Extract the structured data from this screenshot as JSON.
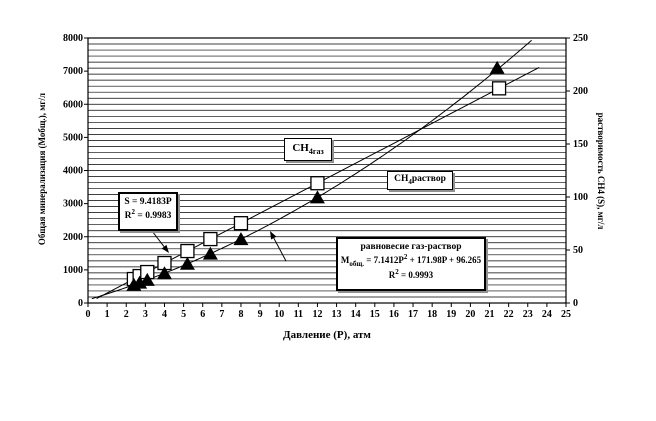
{
  "figure": {
    "background": "#ffffff"
  },
  "axes_text": {
    "xlabel": "Давление (Р), атм",
    "ylabel_left": "Общая минерализация (Мобщ.), мг/л",
    "ylabel_right": "растворимость СН4 (S), мг/л"
  },
  "annotations": {
    "s_box": {
      "line1": "S = 9.4183P",
      "r_base": "R",
      "r_sup": "2",
      "r_rest": " = 0.9983"
    },
    "gas_label": {
      "base": "CH",
      "sub": "4газ"
    },
    "solution_label": {
      "base": "CH",
      "sub": "4",
      "rest": "раствор"
    },
    "eq_box": {
      "title": "равновесие газ-раствор",
      "m_base": "М",
      "m_sub": "общ.",
      "eq_mid": " = 7.1412P",
      "eq_sup": "2",
      "eq_tail": " + 171.98P + 96.265",
      "r_base": "R",
      "r_sup": "2",
      "r_rest": " = 0.9993"
    }
  },
  "chart_data": {
    "type": "scatter",
    "title": "",
    "xlabel": "Давление (Р), атм",
    "ylabel_left": "Общая минерализация (Мобщ.), мг/л",
    "ylabel_right": "растворимость СН4 (S), мг/л",
    "xlim": [
      0,
      25
    ],
    "x_ticks": [
      0,
      1,
      2,
      3,
      4,
      5,
      6,
      7,
      8,
      9,
      10,
      11,
      12,
      13,
      14,
      15,
      16,
      17,
      18,
      19,
      20,
      21,
      22,
      23,
      24,
      25
    ],
    "ylim_left": [
      0,
      8000
    ],
    "y_ticks_left": [
      0,
      1000,
      2000,
      3000,
      4000,
      5000,
      6000,
      7000,
      8000
    ],
    "ylim_right": [
      0,
      250
    ],
    "y_ticks_right": [
      0,
      50,
      100,
      150,
      200,
      250
    ],
    "grid": {
      "horizontal_intervals": 44,
      "vertical": false
    },
    "legend": "none",
    "series": [
      {
        "name": "растворимость СН4 (S) — открытые квадраты, правая ось",
        "marker": "open-square",
        "axis": "right",
        "x": [
          2.4,
          2.7,
          3.1,
          4.0,
          5.2,
          6.4,
          8.0,
          12.0,
          21.5
        ],
        "y": [
          22.6,
          25.4,
          29.2,
          37.7,
          49.0,
          60.3,
          75.3,
          113.0,
          202.5
        ]
      },
      {
        "name": "Мобщ. равновесие газ-раствор — чёрные треугольники, левая ось",
        "marker": "filled-triangle",
        "axis": "left",
        "x": [
          2.4,
          2.7,
          3.1,
          4.0,
          5.2,
          6.4,
          8.0,
          12.0,
          21.4
        ],
        "y": [
          550,
          615,
          700,
          900,
          1185,
          1490,
          1930,
          3190,
          7100
        ]
      }
    ],
    "trendlines": [
      {
        "type": "linear",
        "axis": "right",
        "slope": 9.4183,
        "intercept": 0,
        "x_start": 0.45,
        "x_end": 23.6,
        "equation": "S = 9.4183P",
        "r2": 0.9983
      },
      {
        "type": "quadratic",
        "axis": "left",
        "a": 7.1412,
        "b": 171.98,
        "c": 96.265,
        "x_start": 0.2,
        "x_end": 23.32,
        "equation": "Мобщ. = 7.1412P2 + 171.98P + 96.265",
        "r2": 0.9993
      }
    ]
  },
  "colors": {
    "line": "#000000",
    "grid": "#000000",
    "square_fill": "#ffffff",
    "triangle_fill": "#000000",
    "box_shadow": "#909090"
  }
}
